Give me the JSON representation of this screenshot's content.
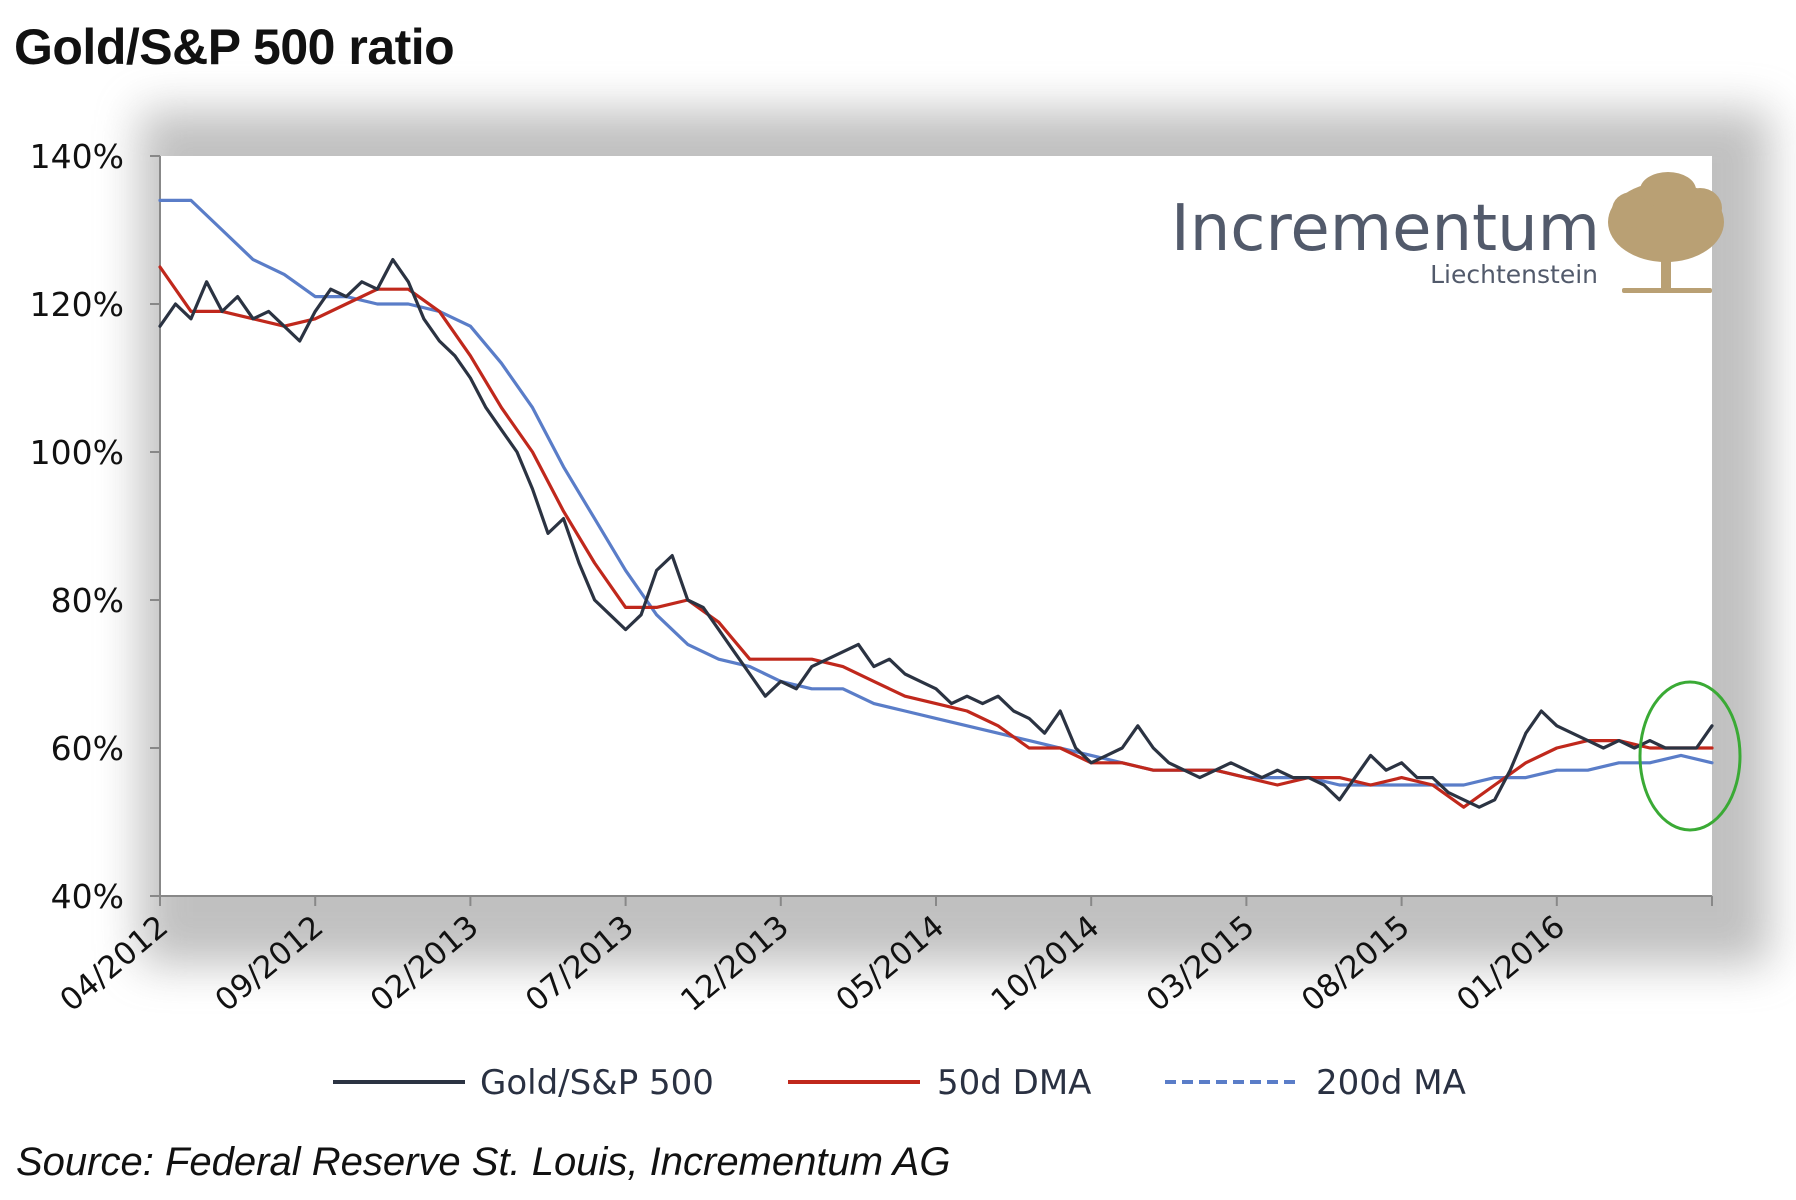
{
  "title": "Gold/S&P 500 ratio",
  "source": "Source: Federal Reserve St. Louis, Incrementum AG",
  "logo": {
    "name": "Incrementum",
    "subtitle": "Liechtenstein",
    "color": "#b9a074"
  },
  "colors": {
    "gold_sp500": "#2b3342",
    "dma50": "#c0281c",
    "ma200": "#5a7dc8",
    "highlight": "#3aaa35"
  },
  "chart_data": {
    "type": "line",
    "title": "Gold/S&P 500 ratio",
    "xlabel": "",
    "ylabel": "",
    "ylim": [
      40,
      140
    ],
    "y_unit": "%",
    "yticks": [
      40,
      60,
      80,
      100,
      120,
      140
    ],
    "ytick_labels": [
      "40%",
      "60%",
      "80%",
      "100%",
      "120%",
      "140%"
    ],
    "x_ticks": [
      "04/2012",
      "09/2012",
      "02/2013",
      "07/2013",
      "12/2013",
      "05/2014",
      "10/2014",
      "03/2015",
      "08/2015",
      "01/2016"
    ],
    "x_range": [
      0,
      50
    ],
    "legend_position": "bottom",
    "annotation": "green circle highlighting the latest values (mid-2016)",
    "series": [
      {
        "name": "Gold/S&P 500",
        "x": [
          0,
          0.5,
          1,
          1.5,
          2,
          2.5,
          3,
          3.5,
          4,
          4.5,
          5,
          5.5,
          6,
          6.5,
          7,
          7.5,
          8,
          8.5,
          9,
          9.5,
          10,
          10.5,
          11,
          11.5,
          12,
          12.5,
          13,
          13.5,
          14,
          14.5,
          15,
          15.5,
          16,
          16.5,
          17,
          17.5,
          18,
          18.5,
          19,
          19.5,
          20,
          20.5,
          21,
          21.5,
          22,
          22.5,
          23,
          23.5,
          24,
          24.5,
          25,
          25.5,
          26,
          26.5,
          27,
          27.5,
          28,
          28.5,
          29,
          29.5,
          30,
          30.5,
          31,
          31.5,
          32,
          32.5,
          33,
          33.5,
          34,
          34.5,
          35,
          35.5,
          36,
          36.5,
          37,
          37.5,
          38,
          38.5,
          39,
          39.5,
          40,
          40.5,
          41,
          41.5,
          42,
          42.5,
          43,
          43.5,
          44,
          44.5,
          45,
          45.5,
          46,
          46.5,
          47,
          47.5,
          48,
          48.5,
          49,
          49.5,
          50
        ],
        "values": [
          117,
          120,
          118,
          123,
          119,
          121,
          118,
          119,
          117,
          115,
          119,
          122,
          121,
          123,
          122,
          126,
          123,
          118,
          115,
          113,
          110,
          106,
          103,
          100,
          95,
          89,
          91,
          85,
          80,
          78,
          76,
          78,
          84,
          86,
          80,
          79,
          76,
          73,
          70,
          67,
          69,
          68,
          71,
          72,
          73,
          74,
          71,
          72,
          70,
          69,
          68,
          66,
          67,
          66,
          67,
          65,
          64,
          62,
          65,
          60,
          58,
          59,
          60,
          63,
          60,
          58,
          57,
          56,
          57,
          58,
          57,
          56,
          57,
          56,
          56,
          55,
          53,
          56,
          59,
          57,
          58,
          56,
          56,
          54,
          53,
          52,
          53,
          57,
          62,
          65,
          63,
          62,
          61,
          60,
          61,
          60,
          61,
          60,
          60,
          60,
          63
        ]
      },
      {
        "name": "50d DMA",
        "x": [
          0,
          1,
          2,
          3,
          4,
          5,
          6,
          7,
          8,
          9,
          10,
          11,
          12,
          13,
          14,
          15,
          16,
          17,
          18,
          19,
          20,
          21,
          22,
          23,
          24,
          25,
          26,
          27,
          28,
          29,
          30,
          31,
          32,
          33,
          34,
          35,
          36,
          37,
          38,
          39,
          40,
          41,
          42,
          43,
          44,
          45,
          46,
          47,
          48,
          49,
          50
        ],
        "values": [
          125,
          119,
          119,
          118,
          117,
          118,
          120,
          122,
          122,
          119,
          113,
          106,
          100,
          92,
          85,
          79,
          79,
          80,
          77,
          72,
          72,
          72,
          71,
          69,
          67,
          66,
          65,
          63,
          60,
          60,
          58,
          58,
          57,
          57,
          57,
          56,
          55,
          56,
          56,
          55,
          56,
          55,
          52,
          55,
          58,
          60,
          61,
          61,
          60,
          60,
          60
        ],
        "style": "solid"
      },
      {
        "name": "200d MA",
        "x": [
          0,
          1,
          2,
          3,
          4,
          5,
          6,
          7,
          8,
          9,
          10,
          11,
          12,
          13,
          14,
          15,
          16,
          17,
          18,
          19,
          20,
          21,
          22,
          23,
          24,
          25,
          26,
          27,
          28,
          29,
          30,
          31,
          32,
          33,
          34,
          35,
          36,
          37,
          38,
          39,
          40,
          41,
          42,
          43,
          44,
          45,
          46,
          47,
          48,
          49,
          50
        ],
        "values": [
          134,
          134,
          130,
          126,
          124,
          121,
          121,
          120,
          120,
          119,
          117,
          112,
          106,
          98,
          91,
          84,
          78,
          74,
          72,
          71,
          69,
          68,
          68,
          66,
          65,
          64,
          63,
          62,
          61,
          60,
          59,
          58,
          57,
          57,
          57,
          56,
          56,
          56,
          55,
          55,
          55,
          55,
          55,
          56,
          56,
          57,
          57,
          58,
          58,
          59,
          58
        ],
        "style": "dashed-in-legend"
      }
    ]
  }
}
